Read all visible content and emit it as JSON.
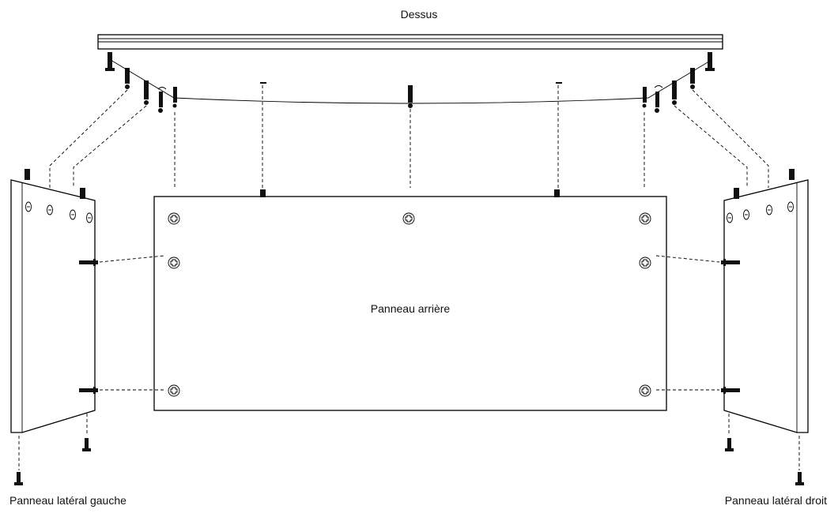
{
  "labels": {
    "top_panel": "Dessus",
    "back_panel": "Panneau arrière",
    "left_panel": "Panneau latéral gauche",
    "right_panel": "Panneau latéral droit"
  }
}
